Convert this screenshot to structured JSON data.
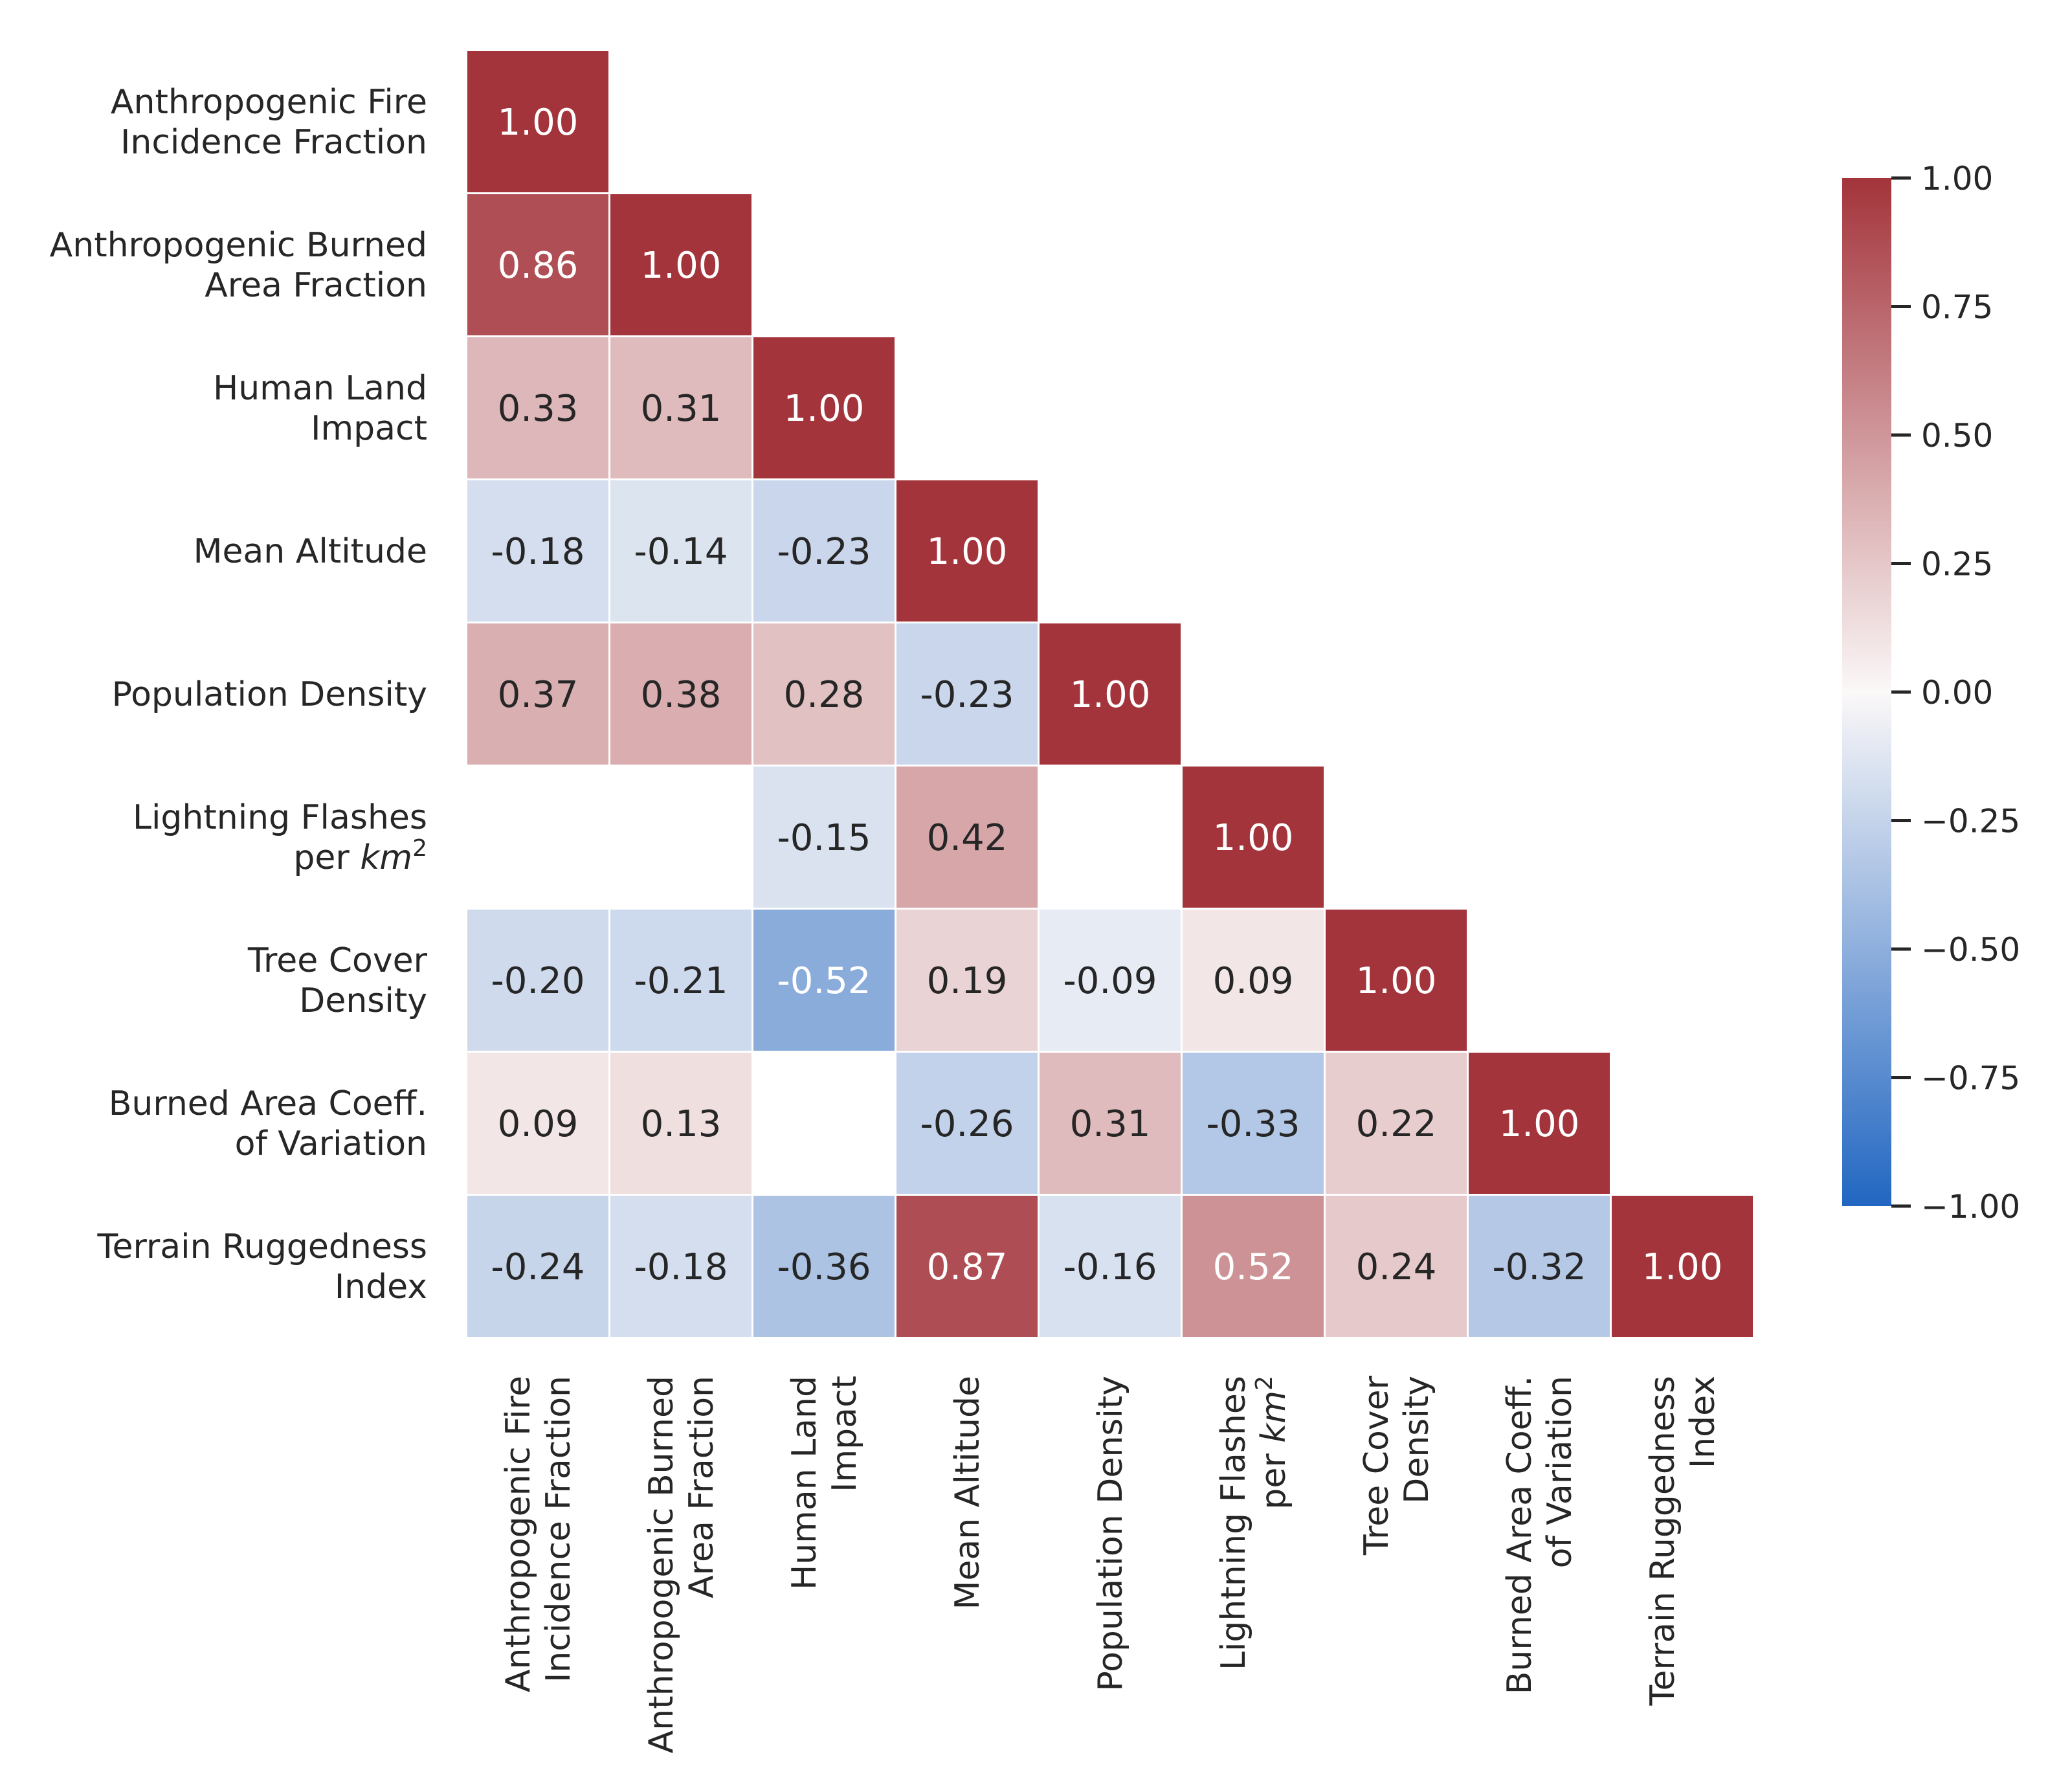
{
  "chart_data": {
    "type": "heatmap",
    "variant": "lower-triangular-correlation",
    "title": "",
    "variables": [
      {
        "lines": [
          "Anthropogenic Fire",
          "Incidence Fraction"
        ]
      },
      {
        "lines": [
          "Anthropogenic Burned",
          "Area Fraction"
        ]
      },
      {
        "lines": [
          "Human Land",
          "Impact"
        ]
      },
      {
        "lines": [
          "Mean Altitude"
        ]
      },
      {
        "lines": [
          "Population Density"
        ]
      },
      {
        "lines": [
          "Lightning Flashes",
          "per km²"
        ]
      },
      {
        "lines": [
          "Tree Cover",
          "Density"
        ]
      },
      {
        "lines": [
          "Burned Area Coeff.",
          "of Variation"
        ]
      },
      {
        "lines": [
          "Terrain Ruggedness",
          "Index"
        ]
      }
    ],
    "matrix": [
      [
        1.0
      ],
      [
        0.86,
        1.0
      ],
      [
        0.33,
        0.31,
        1.0
      ],
      [
        -0.18,
        -0.14,
        -0.23,
        1.0
      ],
      [
        0.37,
        0.38,
        0.28,
        -0.23,
        1.0
      ],
      [
        null,
        null,
        -0.15,
        0.42,
        null,
        1.0
      ],
      [
        -0.2,
        -0.21,
        -0.52,
        0.19,
        -0.09,
        0.09,
        1.0
      ],
      [
        0.09,
        0.13,
        null,
        -0.26,
        0.31,
        -0.33,
        0.22,
        1.0
      ],
      [
        -0.24,
        -0.18,
        -0.36,
        0.87,
        -0.16,
        0.52,
        0.24,
        -0.32,
        1.0
      ]
    ],
    "value_format": "2 decimals",
    "colormap": {
      "name": "vlag",
      "vmin": -1.0,
      "vmax": 1.0,
      "low_color": "#2166c1",
      "mid_color": "#fbf8f8",
      "high_color": "#a3343b"
    },
    "colorbar": {
      "ticks": [
        1.0,
        0.75,
        0.5,
        0.25,
        0.0,
        -0.25,
        -0.5,
        -0.75,
        -1.0
      ],
      "tick_labels": [
        "1.00",
        "0.75",
        "0.50",
        "0.25",
        "0.00",
        "−0.25",
        "−0.50",
        "−0.75",
        "−1.00"
      ]
    },
    "grid": false,
    "legend": "colorbar right"
  }
}
